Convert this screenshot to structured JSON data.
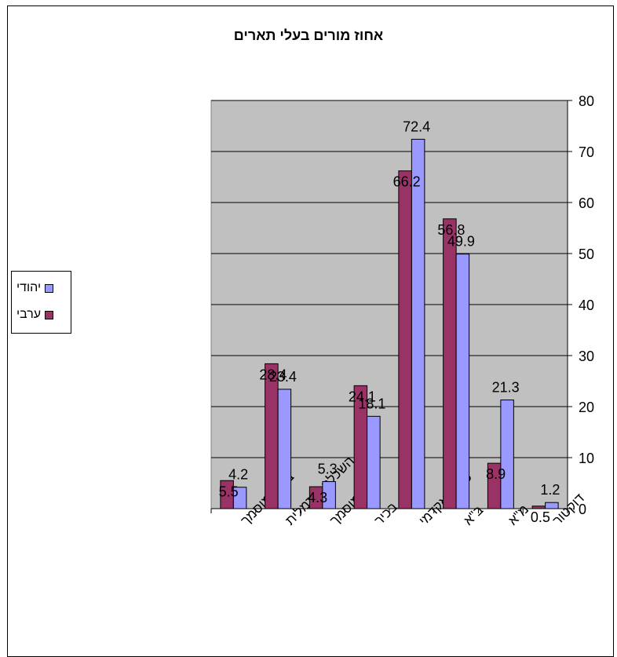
{
  "chart_data": {
    "type": "bar",
    "title": "אחוז מורים בעלי תארים",
    "categories": [
      "בלתי מוסמך",
      "השכלה פורמלית",
      "מוסמך",
      "בכיר",
      "סה\"כ אקדמי",
      "ב\"א",
      "מ\"א",
      "דוקטור"
    ],
    "series": [
      {
        "name": "ערבי",
        "color": "#993366",
        "values": [
          5.5,
          28.4,
          4.3,
          24.1,
          66.2,
          56.8,
          8.9,
          0.5
        ]
      },
      {
        "name": "יהודי",
        "color": "#9999FF",
        "values": [
          4.2,
          23.4,
          5.3,
          18.1,
          72.4,
          49.9,
          21.3,
          1.2
        ]
      }
    ],
    "ylim": [
      0,
      80
    ],
    "yticks": [
      0,
      10,
      20,
      30,
      40,
      50,
      60,
      70,
      80
    ],
    "grid": true,
    "y_axis_side": "right",
    "legend_position": "left",
    "plot_background": "#C0C0C0"
  },
  "legend": {
    "items": [
      {
        "label": "יהודי",
        "color": "#9999FF"
      },
      {
        "label": "ערבי",
        "color": "#993366"
      }
    ]
  }
}
